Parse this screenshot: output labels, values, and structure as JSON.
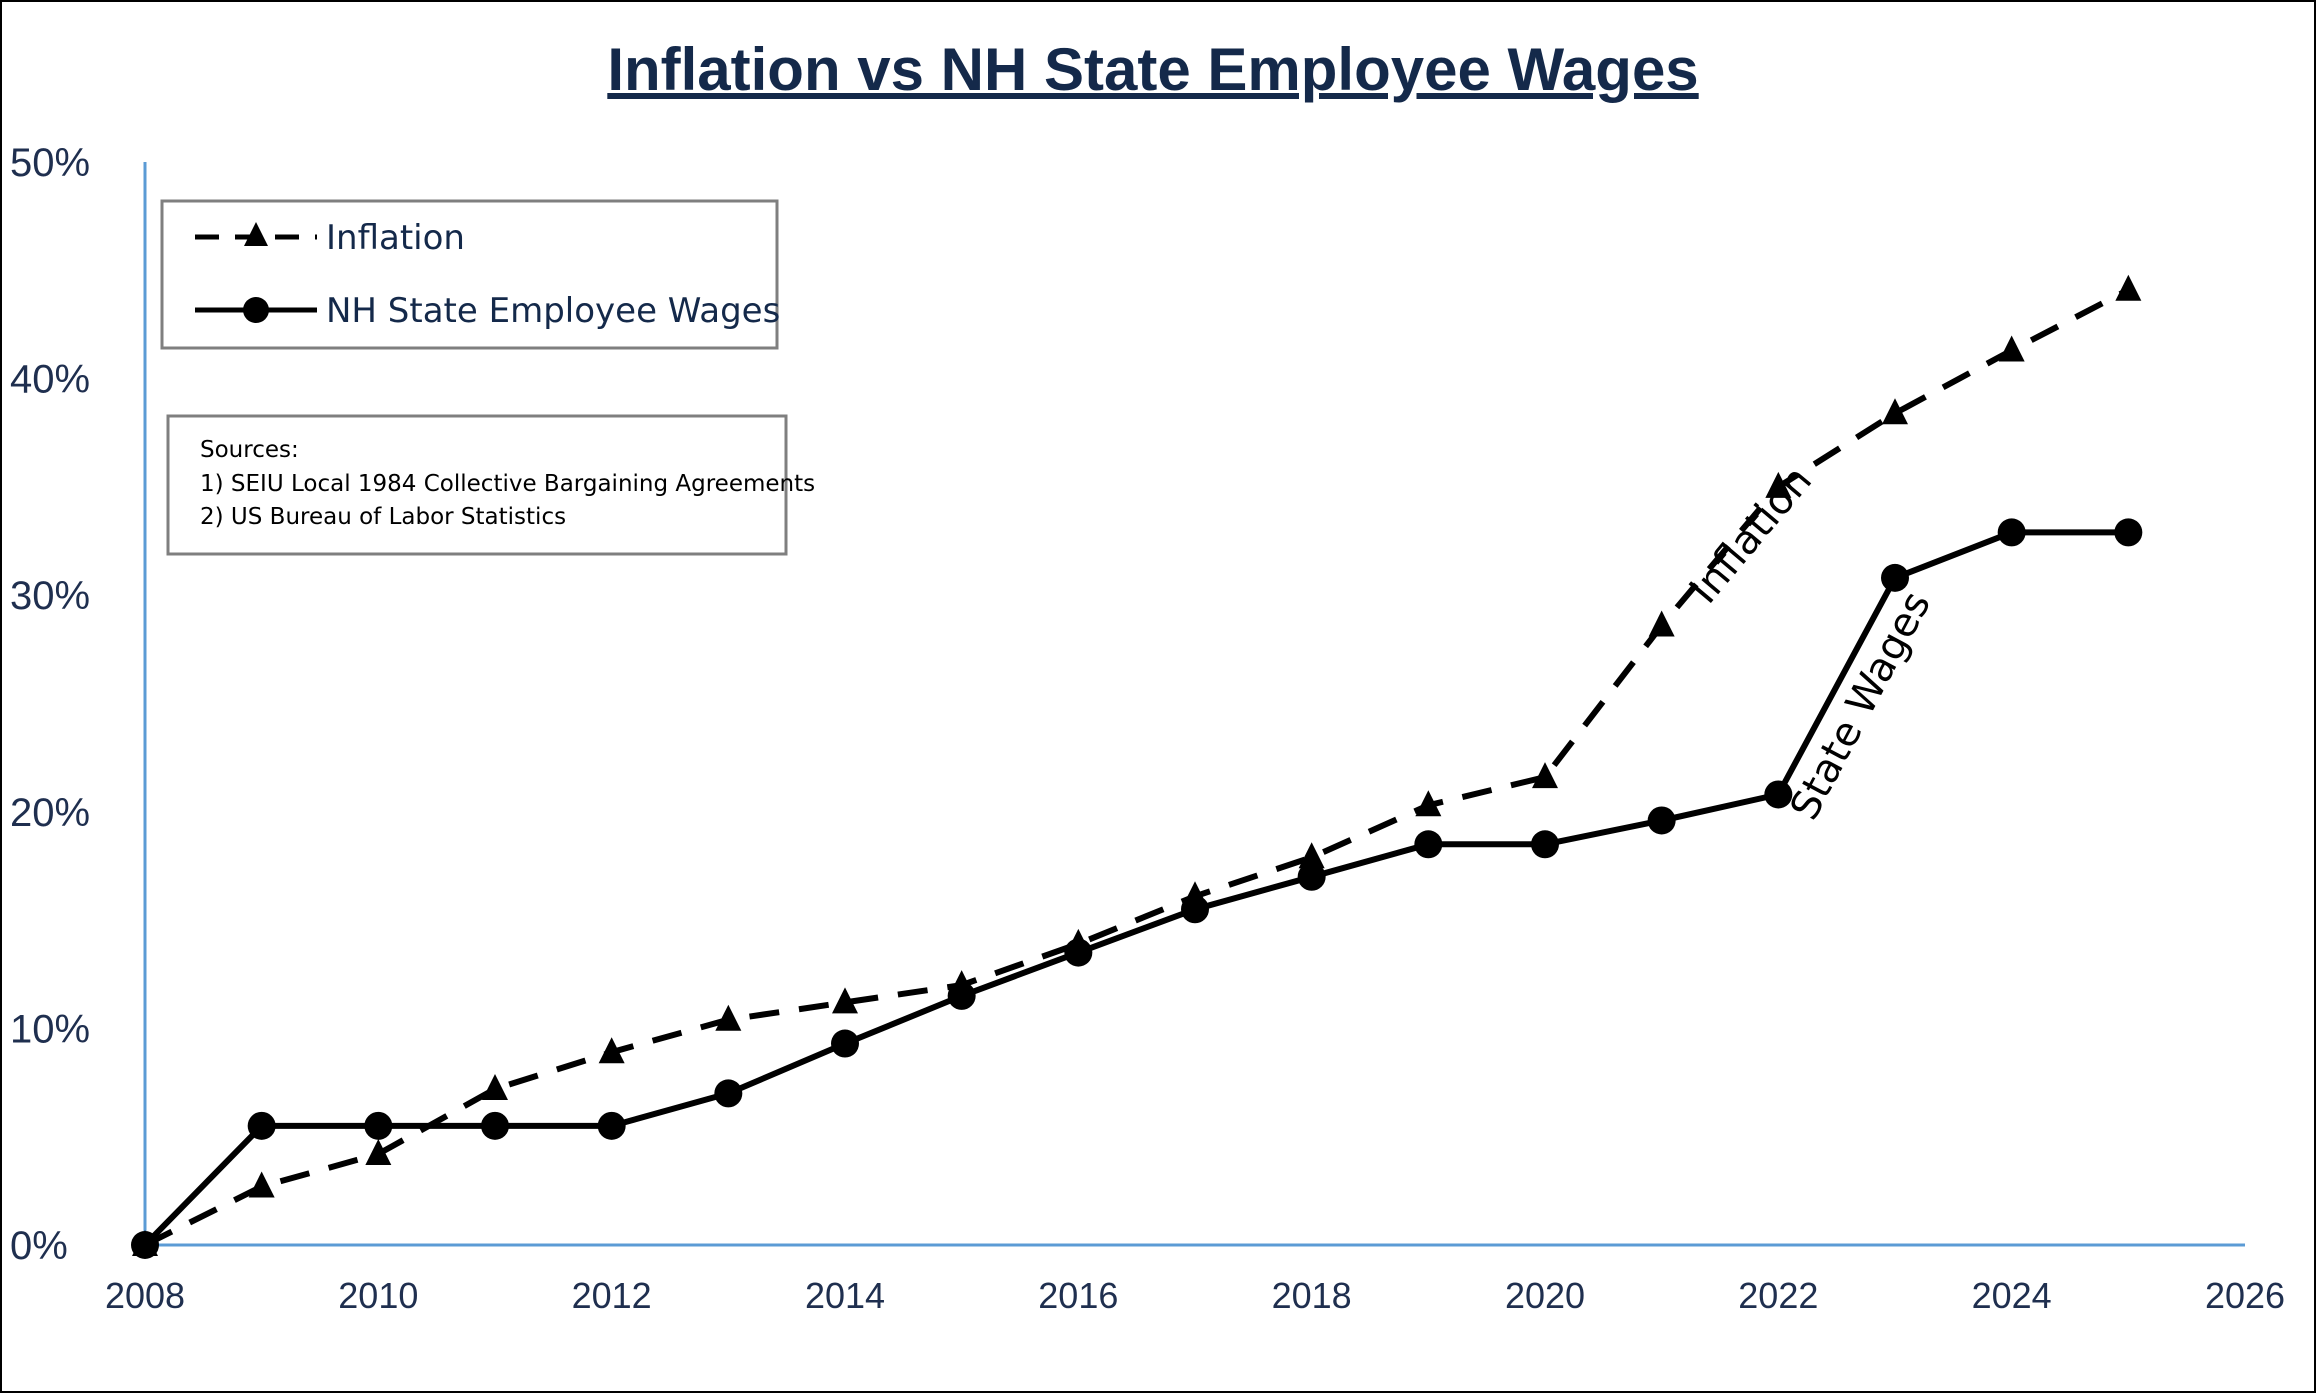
{
  "chart_data": {
    "type": "line",
    "title": "Inflation vs NH State Employee Wages",
    "xlabel": "",
    "ylabel": "",
    "xlim": [
      2008,
      2026
    ],
    "ylim": [
      0,
      50
    ],
    "x_ticks": [
      "2008",
      "2010",
      "2012",
      "2014",
      "2016",
      "2018",
      "2020",
      "2022",
      "2024",
      "2026"
    ],
    "y_ticks": [
      "0%",
      "10%",
      "20%",
      "30%",
      "40%",
      "50%"
    ],
    "grid": false,
    "legend_position": "top-left",
    "series": [
      {
        "name": "Inflation",
        "style": "dashed",
        "marker": "triangle",
        "color": "#000000",
        "x": [
          2008,
          2009,
          2010,
          2011,
          2012,
          2013,
          2014,
          2015,
          2016,
          2017,
          2018,
          2019,
          2020,
          2021,
          2022,
          2023,
          2024,
          2025
        ],
        "y": [
          0,
          2.7,
          4.2,
          7.2,
          8.9,
          10.4,
          11.2,
          12,
          13.9,
          16.1,
          17.9,
          20.3,
          21.6,
          28.6,
          35,
          38.4,
          41.3,
          44.1
        ]
      },
      {
        "name": "NH State Employee Wages",
        "style": "solid",
        "marker": "circle",
        "color": "#000000",
        "x": [
          2008,
          2009,
          2010,
          2011,
          2012,
          2013,
          2014,
          2015,
          2016,
          2017,
          2018,
          2019,
          2020,
          2021,
          2022,
          2023,
          2024,
          2025
        ],
        "y": [
          0,
          5.5,
          5.5,
          5.5,
          5.5,
          7,
          9.3,
          11.5,
          13.5,
          15.5,
          17,
          18.5,
          18.5,
          19.6,
          20.8,
          30.8,
          32.9,
          32.9
        ]
      }
    ],
    "sources": {
      "heading": "Sources:",
      "lines": [
        "1) SEIU Local 1984 Collective Bargaining Agreements",
        "2) US Bureau of Labor Statistics"
      ]
    },
    "annotations": [
      {
        "text": "Inflation",
        "anchor_x": 2021.4,
        "anchor_y": 29.5,
        "angle": -50
      },
      {
        "text": "State Wages",
        "anchor_x": 2022.3,
        "anchor_y": 19.5,
        "angle": -62
      }
    ],
    "colors": {
      "axis": "#5b9bd5",
      "title": "#14294a",
      "ticks": "#1f2f4f",
      "box_border": "#7f7f7f"
    }
  }
}
